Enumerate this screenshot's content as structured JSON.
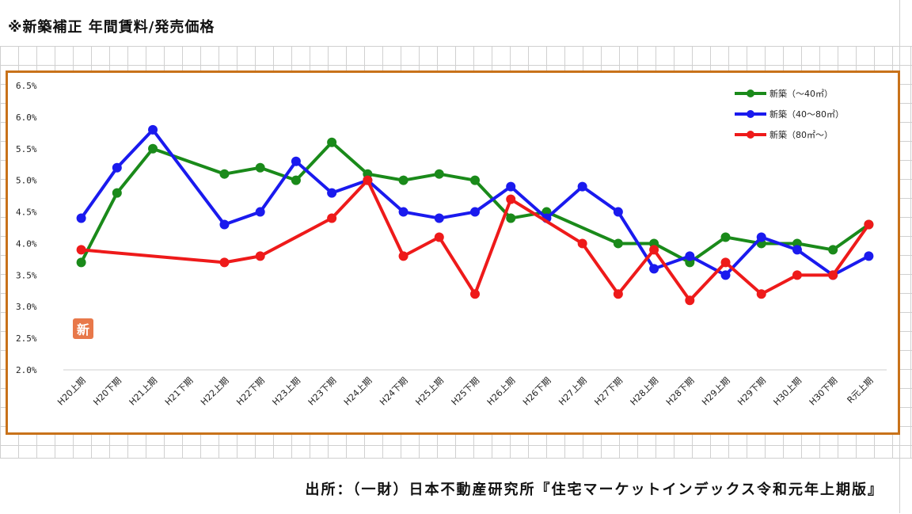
{
  "heading": "※新築補正 年間賃料/発売価格",
  "source": "出所：（一財）日本不動産研究所『住宅マーケットインデックス令和元年上期版』",
  "stamp_text": "新",
  "chart_data": {
    "type": "line",
    "title": "",
    "xlabel": "",
    "ylabel": "",
    "ylim": [
      2.0,
      6.5
    ],
    "yticks": [
      "6.5%",
      "6.0%",
      "5.5%",
      "5.0%",
      "4.5%",
      "4.0%",
      "3.5%",
      "3.0%",
      "2.5%",
      "2.0%"
    ],
    "grid": false,
    "legend_position": "top-right",
    "categories": [
      "H20上期",
      "H20下期",
      "H21上期",
      "H21下期",
      "H22上期",
      "H22下期",
      "H23上期",
      "H23下期",
      "H24上期",
      "H24下期",
      "H25上期",
      "H25下期",
      "H26上期",
      "H26下期",
      "H27上期",
      "H27下期",
      "H28上期",
      "H28下期",
      "H29上期",
      "H29下期",
      "H30上期",
      "H30下期",
      "R元上期"
    ],
    "series": [
      {
        "name": "新築（～40㎡）",
        "color": "#1a8a1a",
        "values": [
          3.7,
          4.8,
          5.5,
          null,
          5.1,
          5.2,
          5.0,
          5.6,
          5.1,
          5.0,
          5.1,
          5.0,
          4.4,
          4.5,
          null,
          4.0,
          4.0,
          3.7,
          4.1,
          4.0,
          4.0,
          3.9,
          4.3
        ]
      },
      {
        "name": "新築（40～80㎡）",
        "color": "#1a1aee",
        "values": [
          4.4,
          5.2,
          5.8,
          null,
          4.3,
          4.5,
          5.3,
          4.8,
          5.0,
          4.5,
          4.4,
          4.5,
          4.9,
          4.4,
          4.9,
          4.5,
          3.6,
          3.8,
          3.5,
          4.1,
          3.9,
          3.5,
          3.8
        ]
      },
      {
        "name": "新築（80㎡～）",
        "color": "#ee1a1a",
        "values": [
          3.9,
          null,
          null,
          null,
          3.7,
          3.8,
          null,
          4.4,
          5.0,
          3.8,
          4.1,
          3.2,
          4.7,
          null,
          4.0,
          3.2,
          3.9,
          3.1,
          3.7,
          3.2,
          3.5,
          3.5,
          4.3
        ]
      }
    ]
  }
}
